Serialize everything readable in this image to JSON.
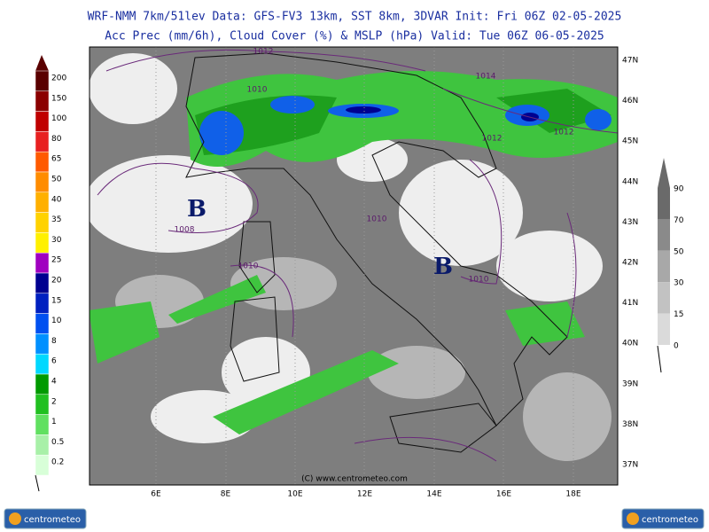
{
  "header": {
    "line1": "WRF-NMM 7km/51lev  Data: GFS-FV3 13km, SST 8km, 3DVAR  Init: Fri 06Z 02-05-2025",
    "line2": "Acc Prec (mm/6h), Cloud Cover (%) & MSLP (hPa)  Valid: Tue 06Z 06-05-2025"
  },
  "precip_legend": {
    "labels": [
      "200",
      "150",
      "100",
      "80",
      "65",
      "50",
      "40",
      "35",
      "30",
      "25",
      "20",
      "15",
      "10",
      "8",
      "6",
      "4",
      "2",
      "1",
      "0.5",
      "0.2"
    ],
    "colors": [
      "#5a0000",
      "#8b0000",
      "#c00000",
      "#e82020",
      "#ff5a00",
      "#ff8c00",
      "#ffb000",
      "#ffd200",
      "#fff000",
      "#a000c0",
      "#000090",
      "#0020c0",
      "#0050f0",
      "#0090ff",
      "#00d8ff",
      "#009a00",
      "#20c020",
      "#60e060",
      "#a8f0a8",
      "#d8ffd8"
    ]
  },
  "cloud_legend": {
    "labels": [
      "90",
      "70",
      "50",
      "30",
      "15",
      "0"
    ],
    "colors": [
      "#6a6a6a",
      "#8a8a8a",
      "#a8a8a8",
      "#c2c2c2",
      "#dadada",
      "#f0f0f0"
    ]
  },
  "map": {
    "lat_labels": [
      "47N",
      "46N",
      "45N",
      "44N",
      "43N",
      "42N",
      "41N",
      "40N",
      "39N",
      "38N",
      "37N"
    ],
    "lon_labels": [
      "6E",
      "8E",
      "10E",
      "12E",
      "14E",
      "16E",
      "18E"
    ],
    "isobar_labels": [
      "1012",
      "1014",
      "1012",
      "1012",
      "1010",
      "1008",
      "1010",
      "1010",
      "1010"
    ],
    "pressure_centers": [
      "B",
      "B"
    ],
    "credit": "(C) www.centrometeo.com"
  },
  "logos": [
    "centrometeo",
    "centrometeo"
  ]
}
